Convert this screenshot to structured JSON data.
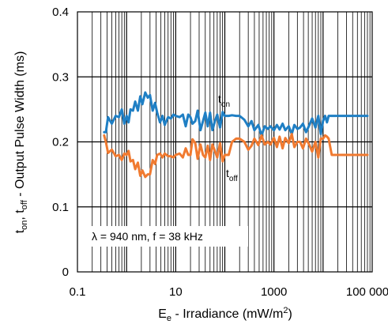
{
  "chart_data": {
    "type": "line",
    "xscale": "log",
    "xlim": [
      0.1,
      100000
    ],
    "ylim": [
      0,
      0.4
    ],
    "yticks": [
      0,
      0.1,
      0.2,
      0.3,
      0.4
    ],
    "ytick_labels": [
      "0",
      "0.1",
      "0.2",
      "0.3",
      "0.4"
    ],
    "xticks": [
      0.1,
      10,
      1000,
      100000
    ],
    "xtick_labels": [
      "0.1",
      "10",
      "1000",
      "100 000"
    ],
    "xlabel": {
      "main": "E",
      "sub": "e",
      "rest": " - Irradiance (mW/m",
      "sup": "2",
      "end": ")"
    },
    "ylabel": {
      "t1": "t",
      "s1": "on",
      "mid": ", t",
      "s2": "off",
      "rest": " - Output Pulse Width (ms)"
    },
    "annotation": "λ = 940 nm, f = 38 kHz",
    "grid": true,
    "series": [
      {
        "label_main": "t",
        "label_sub": "on",
        "color": "#1f7fc4",
        "x": [
          0.35,
          0.38,
          0.42,
          0.5,
          0.6,
          0.7,
          0.8,
          0.9,
          1.0,
          1.1,
          1.2,
          1.35,
          1.5,
          1.7,
          1.9,
          2.1,
          2.4,
          2.7,
          3.0,
          3.4,
          3.8,
          4.2,
          4.8,
          5.4,
          6.0,
          7.0,
          8.0,
          9.0,
          10,
          12,
          14,
          16,
          18,
          20,
          22,
          25,
          28,
          32,
          36,
          40,
          45,
          50,
          56,
          63,
          70,
          80,
          90,
          100,
          120,
          140,
          170,
          200,
          250,
          300,
          350,
          400,
          480,
          560,
          650,
          750,
          850,
          1000,
          1150,
          1300,
          1500,
          1700,
          2000,
          2300,
          2600,
          3000,
          3400,
          3900,
          4500,
          5200,
          6000,
          7000,
          8000,
          9000,
          10000,
          11000,
          12000,
          13000,
          15000,
          20000,
          30000,
          50000,
          80000
        ],
        "y": [
          0.215,
          0.215,
          0.238,
          0.228,
          0.24,
          0.238,
          0.25,
          0.228,
          0.24,
          0.23,
          0.25,
          0.248,
          0.262,
          0.248,
          0.27,
          0.258,
          0.276,
          0.268,
          0.272,
          0.248,
          0.26,
          0.245,
          0.23,
          0.24,
          0.226,
          0.238,
          0.236,
          0.242,
          0.24,
          0.238,
          0.242,
          0.224,
          0.242,
          0.238,
          0.228,
          0.232,
          0.248,
          0.218,
          0.232,
          0.245,
          0.224,
          0.245,
          0.218,
          0.232,
          0.242,
          0.222,
          0.246,
          0.24,
          0.24,
          0.241,
          0.24,
          0.24,
          0.234,
          0.224,
          0.232,
          0.218,
          0.226,
          0.21,
          0.224,
          0.22,
          0.224,
          0.218,
          0.226,
          0.219,
          0.228,
          0.218,
          0.224,
          0.212,
          0.226,
          0.22,
          0.222,
          0.228,
          0.215,
          0.225,
          0.236,
          0.222,
          0.24,
          0.212,
          0.232,
          0.24,
          0.23,
          0.24,
          0.24,
          0.24,
          0.24,
          0.24,
          0.24
        ]
      },
      {
        "label_main": "t",
        "label_sub": "off",
        "color": "#f07a30",
        "x": [
          0.35,
          0.38,
          0.42,
          0.5,
          0.6,
          0.7,
          0.8,
          0.9,
          1.0,
          1.1,
          1.2,
          1.35,
          1.5,
          1.7,
          1.9,
          2.1,
          2.4,
          2.7,
          3.0,
          3.4,
          3.8,
          4.2,
          4.8,
          5.4,
          6.0,
          7.0,
          8.0,
          9.0,
          10,
          12,
          14,
          16,
          18,
          20,
          22,
          25,
          28,
          32,
          36,
          40,
          45,
          50,
          56,
          63,
          70,
          80,
          90,
          100,
          120,
          140,
          170,
          200,
          250,
          300,
          350,
          400,
          480,
          560,
          650,
          750,
          850,
          1000,
          1150,
          1300,
          1500,
          1700,
          2000,
          2300,
          2600,
          3000,
          3400,
          3900,
          4500,
          5200,
          6000,
          7000,
          8000,
          9000,
          10000,
          11000,
          12000,
          13000,
          15000,
          20000,
          30000,
          50000,
          80000
        ],
        "y": [
          0.21,
          0.2,
          0.183,
          0.188,
          0.178,
          0.18,
          0.172,
          0.182,
          0.18,
          0.186,
          0.17,
          0.172,
          0.158,
          0.168,
          0.148,
          0.156,
          0.146,
          0.15,
          0.15,
          0.172,
          0.166,
          0.18,
          0.182,
          0.176,
          0.182,
          0.178,
          0.178,
          0.176,
          0.18,
          0.182,
          0.176,
          0.19,
          0.18,
          0.18,
          0.204,
          0.198,
          0.174,
          0.196,
          0.18,
          0.176,
          0.194,
          0.172,
          0.196,
          0.186,
          0.176,
          0.198,
          0.17,
          0.18,
          0.18,
          0.2,
          0.205,
          0.205,
          0.2,
          0.188,
          0.194,
          0.205,
          0.195,
          0.21,
          0.196,
          0.2,
          0.196,
          0.206,
          0.192,
          0.208,
          0.19,
          0.206,
          0.198,
          0.212,
          0.192,
          0.2,
          0.2,
          0.19,
          0.205,
          0.196,
          0.185,
          0.2,
          0.176,
          0.205,
          0.205,
          0.21,
          0.208,
          0.205,
          0.18,
          0.18,
          0.18,
          0.18,
          0.18
        ]
      }
    ]
  }
}
